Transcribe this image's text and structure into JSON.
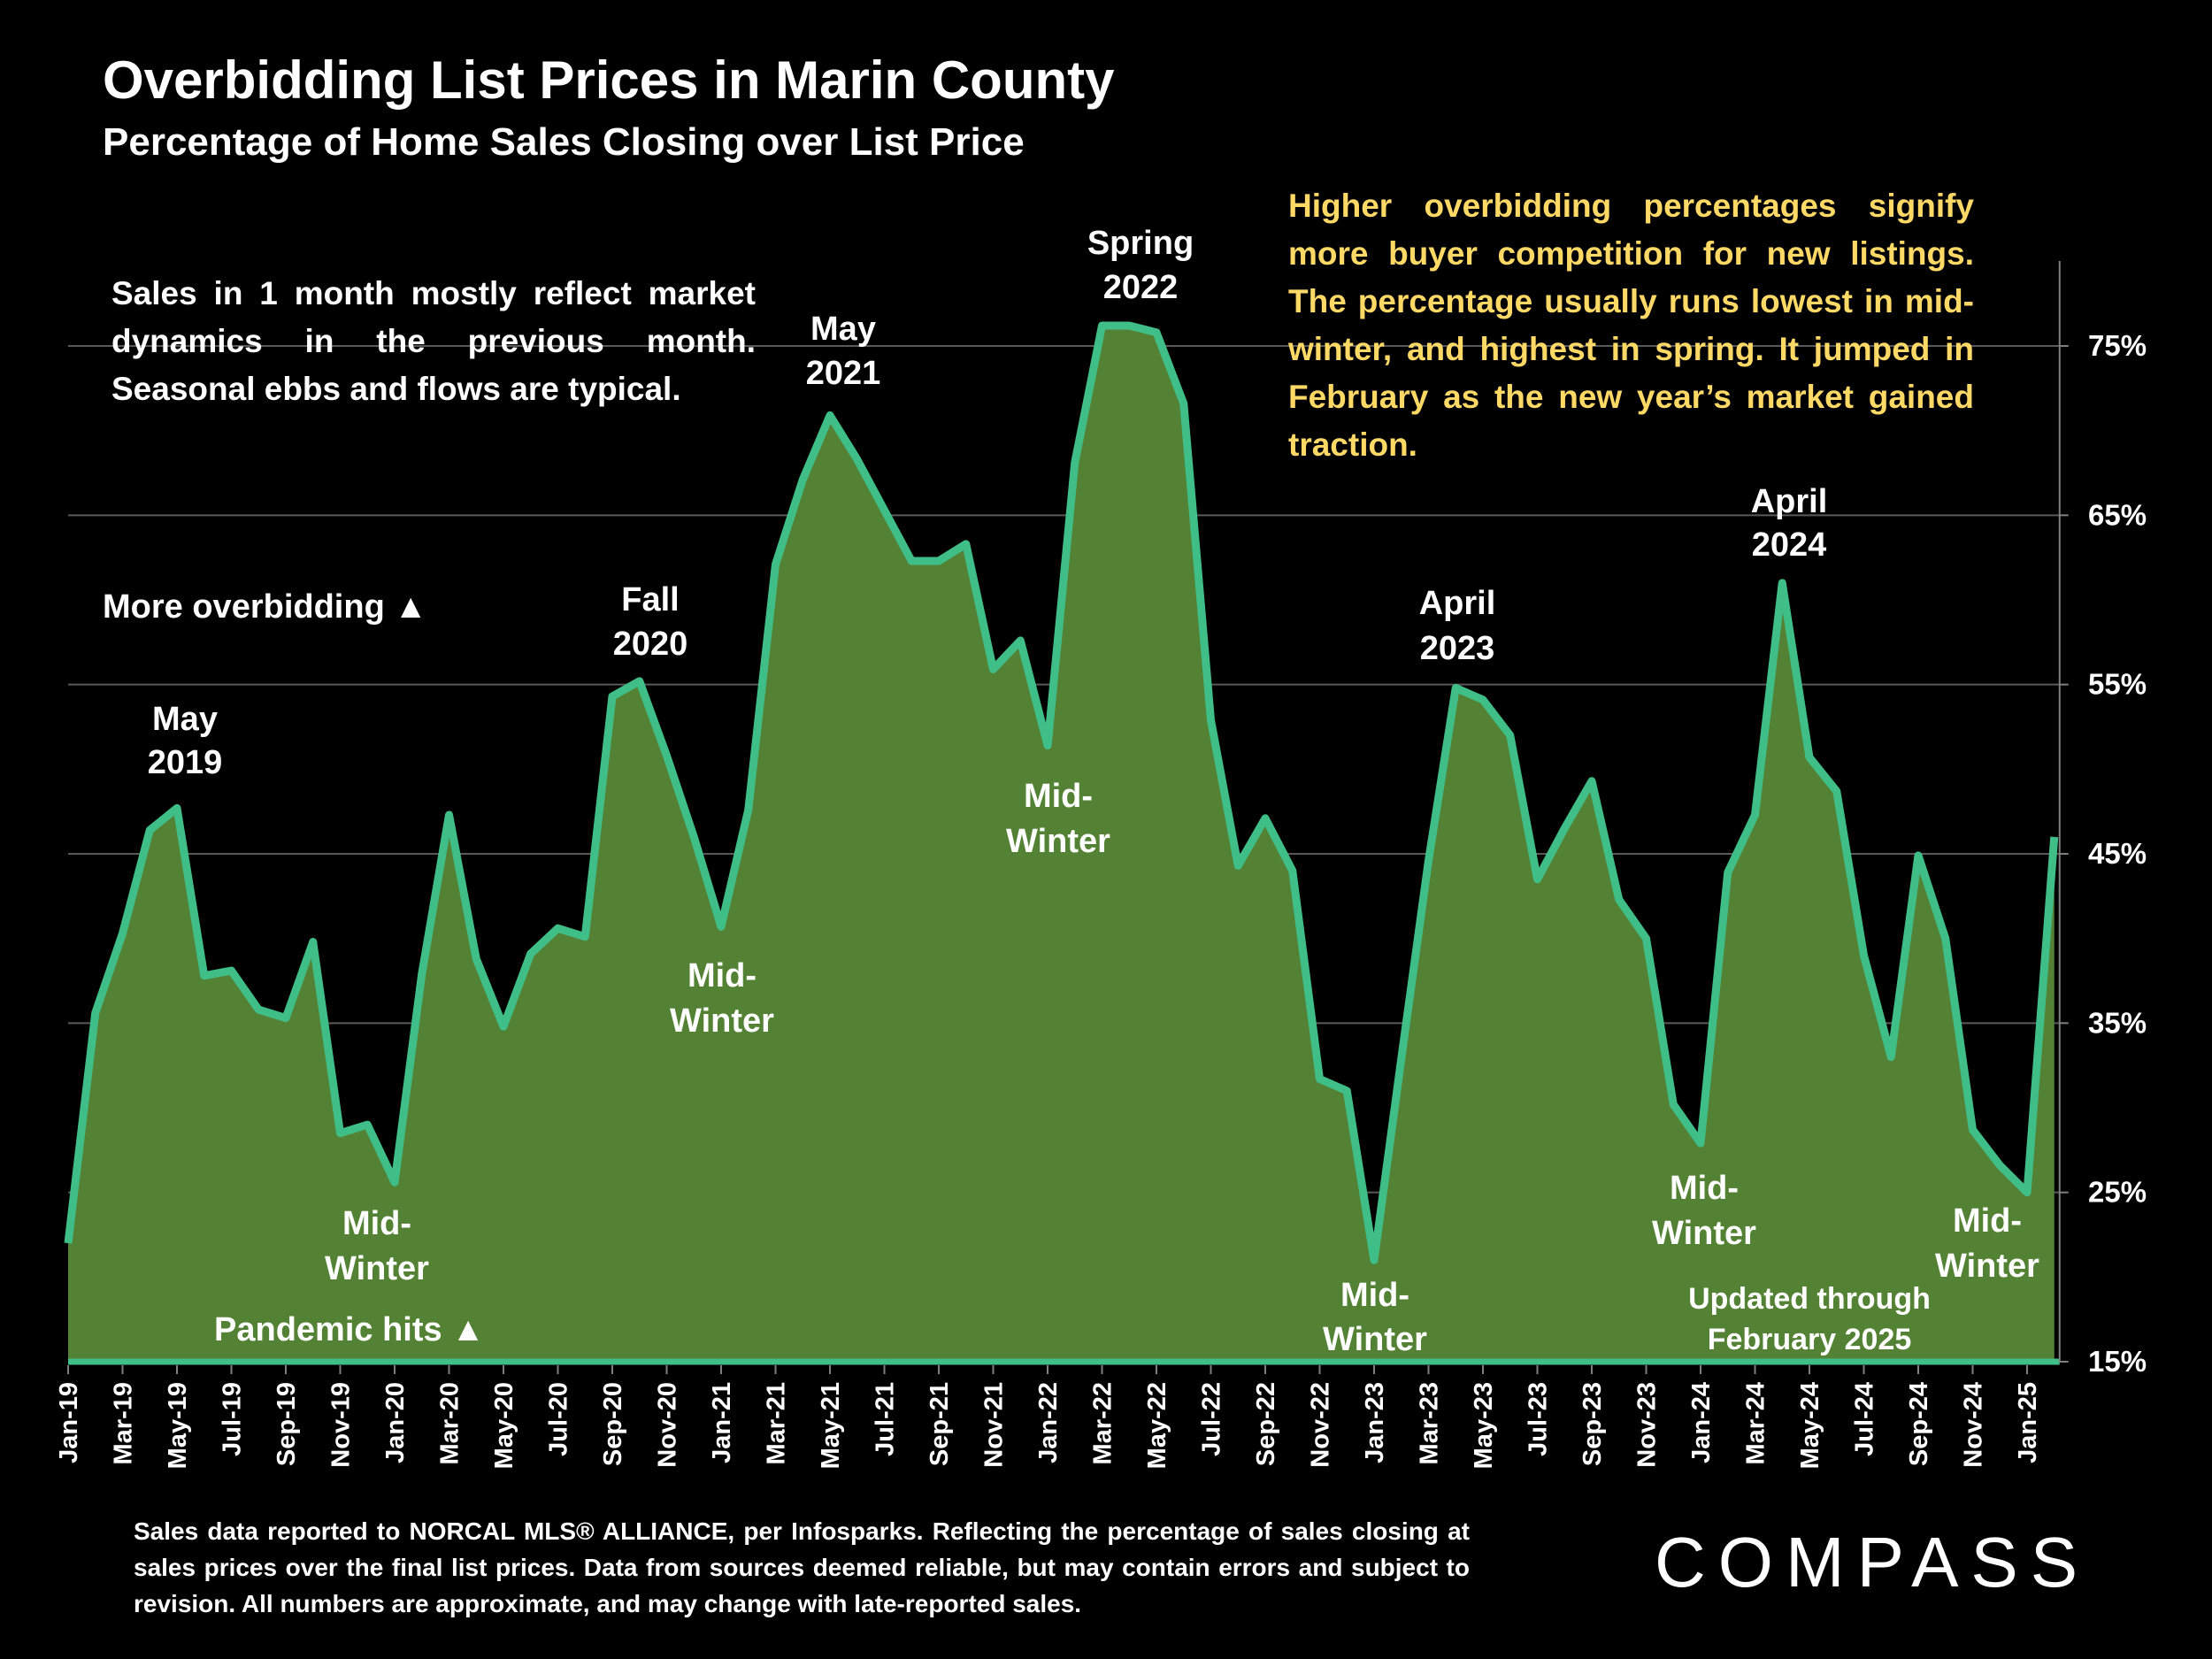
{
  "title": "Overbidding List Prices in Marin County",
  "subtitle": "Percentage of Home Sales Closing over List Price",
  "note_left": "Sales in 1 month mostly reflect market dynamics in the previous month. Seasonal ebbs and flows are typical.",
  "note_right": "Higher overbidding percentages signify more buyer competition for new listings. The percentage usually runs lowest in mid-winter, and highest in spring. It jumped in February as the new year’s market gained traction.",
  "footer": "Sales data reported to NORCAL MLS® ALLIANCE, per Infosparks. Reflecting the percentage of sales closing at sales prices over the final list prices. Data from sources deemed reliable, but may contain errors and subject to revision. All numbers are approximate, and may change with late-reported sales.",
  "logo": "COMPASS",
  "colors": {
    "area_fill": "#548235",
    "line": "#3fbf87",
    "note_right": "#ffd966",
    "background": "#000000"
  },
  "annotations": {
    "may2019": [
      "May",
      "2019"
    ],
    "fall2020": [
      "Fall",
      "2020"
    ],
    "may2021": [
      "May",
      "2021"
    ],
    "spring2022": [
      "Spring",
      "2022"
    ],
    "april2023": [
      "April",
      "2023"
    ],
    "april2024": [
      "April",
      "2024"
    ],
    "midwinter": [
      "Mid-",
      "Winter"
    ],
    "updated": [
      "Updated through",
      "February 2025"
    ],
    "pandemic": "Pandemic hits ▲",
    "more_overbidding": "More overbidding ▲"
  },
  "chart_data": {
    "type": "area",
    "title": "Overbidding List Prices in Marin County",
    "subtitle": "Percentage of Home Sales Closing over List Price",
    "y_axis_position": "right",
    "ylim": [
      15,
      80
    ],
    "y_ticks": [
      "15%",
      "25%",
      "35%",
      "45%",
      "55%",
      "65%",
      "75%"
    ],
    "grid": true,
    "x_tick_labels": [
      "Jan-19",
      "Mar-19",
      "May-19",
      "Jul-19",
      "Sep-19",
      "Nov-19",
      "Jan-20",
      "Mar-20",
      "May-20",
      "Jul-20",
      "Sep-20",
      "Nov-20",
      "Jan-21",
      "Mar-21",
      "May-21",
      "Jul-21",
      "Sep-21",
      "Nov-21",
      "Jan-22",
      "Mar-22",
      "May-22",
      "Jul-22",
      "Sep-22",
      "Nov-22",
      "Jan-23",
      "Mar-23",
      "May-23",
      "Jul-23",
      "Sep-23",
      "Nov-23",
      "Jan-24",
      "Mar-24",
      "May-24",
      "Jul-24",
      "Sep-24",
      "Nov-24",
      "Jan-25"
    ],
    "x_start": "Jan-19",
    "x_end": "Feb-25",
    "values": [
      22,
      35.6,
      40.3,
      46.4,
      47.7,
      37.8,
      38.1,
      35.8,
      35.3,
      39.8,
      28.5,
      29,
      25.6,
      37.9,
      47.3,
      38.8,
      34.8,
      39.1,
      40.6,
      40.1,
      54.3,
      55.2,
      50.8,
      46,
      40.7,
      47.6,
      62.1,
      67.1,
      70.9,
      68.3,
      65.3,
      62.3,
      62.3,
      63.3,
      55.9,
      57.6,
      51.4,
      68.1,
      76.2,
      76.2,
      75.8,
      71.6,
      52.9,
      44.3,
      47.1,
      44,
      31.7,
      31,
      21,
      32.9,
      44.6,
      54.8,
      54.1,
      52,
      43.5,
      46.5,
      49.3,
      42.3,
      40,
      30.2,
      27.9,
      43.9,
      47.3,
      61,
      50.7,
      48.7,
      39,
      33,
      44.9,
      40,
      28.7,
      26.6,
      25,
      46
    ]
  }
}
